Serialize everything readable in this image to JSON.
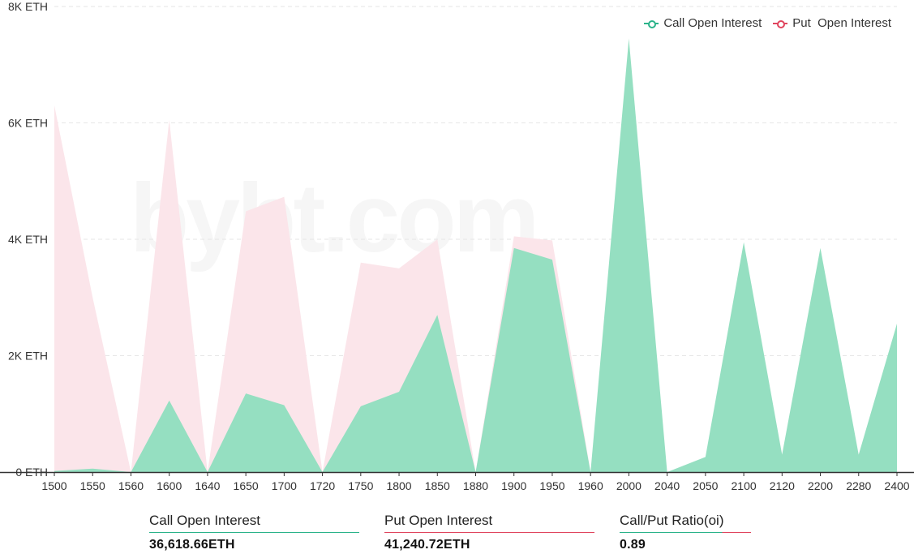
{
  "legend": {
    "call_label": "Call Open Interest",
    "put_label": "Put  Open Interest"
  },
  "watermark": "bybt.com",
  "summary": {
    "call": {
      "label": "Call Open Interest",
      "value": "36,618.66ETH"
    },
    "put": {
      "label": "Put Open Interest",
      "value": "41,240.72ETH"
    },
    "ratio": {
      "label": "Call/Put Ratio(oi)",
      "value": "0.89"
    }
  },
  "colors": {
    "call_fill": "#95dfc1",
    "call_line": "#2bb38a",
    "put_fill": "#fbe5ea",
    "put_line": "#e0455e",
    "grid": "#e6e6e6",
    "axis": "#333333"
  },
  "chart_data": {
    "type": "area",
    "categories": [
      "1500",
      "1550",
      "1560",
      "1600",
      "1640",
      "1650",
      "1700",
      "1720",
      "1750",
      "1800",
      "1850",
      "1880",
      "1900",
      "1950",
      "1960",
      "2000",
      "2040",
      "2050",
      "2100",
      "2120",
      "2200",
      "2280",
      "2400"
    ],
    "series": [
      {
        "name": "Call Open Interest",
        "values": [
          20,
          60,
          0,
          1230,
          0,
          1350,
          1150,
          0,
          1130,
          1380,
          2700,
          0,
          3850,
          3650,
          0,
          7450,
          0,
          260,
          3950,
          300,
          3850,
          300,
          2550
        ]
      },
      {
        "name": "Put  Open Interest",
        "values": [
          6300,
          3000,
          0,
          6050,
          0,
          4480,
          4730,
          0,
          3600,
          3500,
          4000,
          0,
          4050,
          3980,
          0,
          0,
          0,
          0,
          0,
          0,
          0,
          0,
          0
        ]
      }
    ],
    "y_ticks": [
      "0 ETH",
      "2K ETH",
      "4K ETH",
      "6K ETH",
      "8K ETH"
    ],
    "ylim": [
      0,
      8000
    ],
    "grid": true,
    "legend_position": "top-right"
  }
}
